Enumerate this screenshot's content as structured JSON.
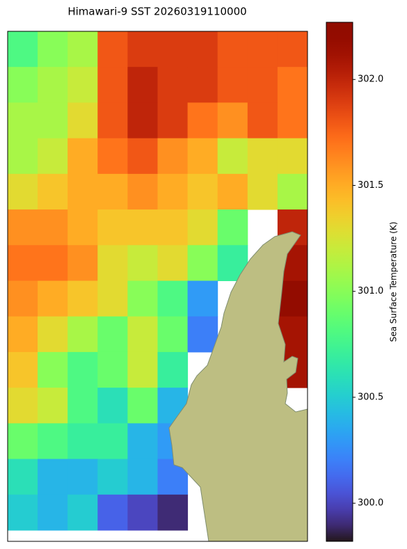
{
  "chart_data": {
    "type": "heatmap",
    "title": "Himawari-9 SST 20260319110000",
    "colorbar_label": "Sea Surface Temperature (K)",
    "colormap": "turbo",
    "clim": [
      299.82,
      302.27
    ],
    "cticks": [
      {
        "value": 300.0,
        "label": "300.0"
      },
      300.5,
      {
        "value": 301.0,
        "label": "301.0"
      },
      301.5,
      {
        "value": 302.0,
        "label": "302.0"
      }
    ],
    "values": [
      [
        300.8,
        301.0,
        301.1,
        301.8,
        301.9,
        301.9,
        301.9,
        301.8,
        301.8,
        301.8
      ],
      [
        301.0,
        301.1,
        301.2,
        301.8,
        302.0,
        301.9,
        301.9,
        301.8,
        301.8,
        301.7
      ],
      [
        301.1,
        301.1,
        301.3,
        301.8,
        302.0,
        301.9,
        301.7,
        301.6,
        301.8,
        301.7
      ],
      [
        301.1,
        301.2,
        301.5,
        301.7,
        301.8,
        301.6,
        301.5,
        301.2,
        301.3,
        301.3
      ],
      [
        301.3,
        301.4,
        301.5,
        301.5,
        301.6,
        301.5,
        301.4,
        301.5,
        301.3,
        301.1
      ],
      [
        301.6,
        301.6,
        301.5,
        301.4,
        301.4,
        301.4,
        301.3,
        300.9,
        null,
        302.0
      ],
      [
        301.7,
        301.7,
        301.6,
        301.3,
        301.2,
        301.3,
        301.0,
        300.7,
        null,
        302.1
      ],
      [
        301.6,
        301.5,
        301.4,
        301.3,
        301.0,
        300.8,
        300.3,
        null,
        null,
        302.2
      ],
      [
        301.5,
        301.3,
        301.1,
        300.9,
        301.2,
        300.9,
        300.2,
        null,
        null,
        302.1
      ],
      [
        301.4,
        301.0,
        300.8,
        300.9,
        301.2,
        300.7,
        null,
        null,
        null,
        302.1
      ],
      [
        301.3,
        301.2,
        300.8,
        300.6,
        300.9,
        300.4,
        null,
        null,
        null,
        null
      ],
      [
        300.9,
        300.8,
        300.7,
        300.7,
        300.4,
        300.3,
        null,
        null,
        null,
        null
      ],
      [
        300.6,
        300.4,
        300.4,
        300.5,
        300.4,
        300.2,
        null,
        null,
        null,
        null
      ],
      [
        300.5,
        300.4,
        300.5,
        300.1,
        300.0,
        299.9,
        null,
        null,
        null,
        null
      ]
    ]
  }
}
